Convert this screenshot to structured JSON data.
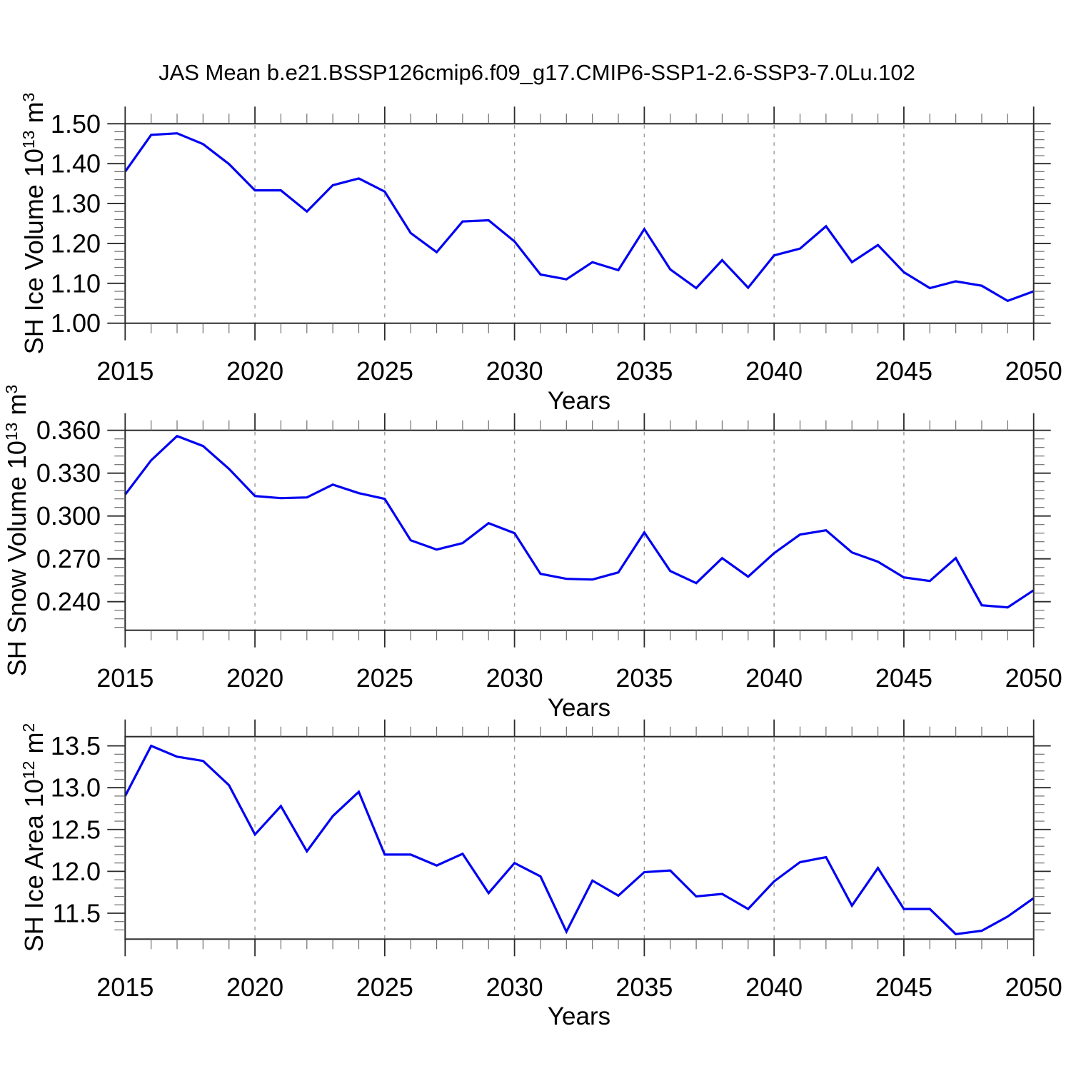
{
  "title": "JAS Mean b.e21.BSSP126cmip6.f09_g17.CMIP6-SSP1-2.6-SSP3-7.0Lu.102",
  "colors": {
    "line": "#0000f2",
    "grid": "#9a9a9a",
    "axis": "#2b2b2b",
    "minor_tick": "#6e6e6e"
  },
  "chart_data": {
    "type": "line",
    "x": [
      2015,
      2016,
      2017,
      2018,
      2019,
      2020,
      2021,
      2022,
      2023,
      2024,
      2025,
      2026,
      2027,
      2028,
      2029,
      2030,
      2031,
      2032,
      2033,
      2034,
      2035,
      2036,
      2037,
      2038,
      2039,
      2040,
      2041,
      2042,
      2043,
      2044,
      2045,
      2046,
      2047,
      2048,
      2049,
      2050
    ],
    "xticks": [
      2015,
      2020,
      2025,
      2030,
      2035,
      2040,
      2045,
      2050
    ],
    "xtick_labels": [
      "2015",
      "2020",
      "2025",
      "2030",
      "2035",
      "2040",
      "2045",
      "2050"
    ],
    "gridline_years": [
      2020,
      2025,
      2030,
      2035,
      2040,
      2045
    ],
    "grid": "vertical-dashed",
    "legend": "none",
    "panels": [
      {
        "name": "sh-ice-volume",
        "ylabel": "SH Ice Volume 10^13 m^3",
        "ylabel_parts": [
          {
            "t": "SH Ice Volume 10"
          },
          {
            "t": "13",
            "sup": true
          },
          {
            "t": " m"
          },
          {
            "t": "3",
            "sup": true
          }
        ],
        "xlabel": "Years",
        "ylim": [
          1.0,
          1.5
        ],
        "yticks": [
          1.0,
          1.1,
          1.2,
          1.3,
          1.4,
          1.5
        ],
        "ytick_labels": [
          "1.00",
          "1.10",
          "1.20",
          "1.30",
          "1.40",
          "1.50"
        ],
        "yminor_step": 0.02,
        "values": [
          1.38,
          1.472,
          1.476,
          1.449,
          1.399,
          1.333,
          1.333,
          1.28,
          1.346,
          1.363,
          1.33,
          1.226,
          1.178,
          1.255,
          1.258,
          1.205,
          1.122,
          1.11,
          1.153,
          1.133,
          1.236,
          1.135,
          1.088,
          1.158,
          1.089,
          1.17,
          1.187,
          1.243,
          1.153,
          1.196,
          1.128,
          1.088,
          1.105,
          1.094,
          1.056,
          1.08
        ]
      },
      {
        "name": "sh-snow-volume",
        "ylabel": "SH Snow Volume 10^13 m^3",
        "ylabel_parts": [
          {
            "t": "SH Snow Volume 10"
          },
          {
            "t": "13",
            "sup": true
          },
          {
            "t": " m"
          },
          {
            "t": "3",
            "sup": true
          }
        ],
        "xlabel": "Years",
        "ylim": [
          0.22,
          0.36
        ],
        "yticks": [
          0.24,
          0.27,
          0.3,
          0.33,
          0.36
        ],
        "ytick_labels": [
          "0.240",
          "0.270",
          "0.300",
          "0.330",
          "0.360"
        ],
        "yminor_step": 0.006,
        "values": [
          0.315,
          0.339,
          0.356,
          0.349,
          0.333,
          0.314,
          0.3125,
          0.313,
          0.322,
          0.316,
          0.312,
          0.283,
          0.2765,
          0.281,
          0.295,
          0.288,
          0.2595,
          0.256,
          0.2555,
          0.2605,
          0.2885,
          0.2615,
          0.253,
          0.2705,
          0.2575,
          0.274,
          0.287,
          0.29,
          0.2745,
          0.268,
          0.257,
          0.2545,
          0.2705,
          0.2375,
          0.236,
          0.248
        ]
      },
      {
        "name": "sh-ice-area",
        "ylabel": "SH Ice Area 10^12 m^2",
        "ylabel_parts": [
          {
            "t": "SH Ice Area 10"
          },
          {
            "t": "12",
            "sup": true
          },
          {
            "t": " m"
          },
          {
            "t": "2",
            "sup": true
          }
        ],
        "xlabel": "Years",
        "ylim": [
          11.19,
          13.61
        ],
        "yticks": [
          11.5,
          12.0,
          12.5,
          13.0,
          13.5
        ],
        "ytick_labels": [
          "11.5",
          "12.0",
          "12.5",
          "13.0",
          "13.5"
        ],
        "yminor_step": 0.1,
        "values": [
          12.9,
          13.5,
          13.37,
          13.32,
          13.03,
          12.44,
          12.78,
          12.24,
          12.66,
          12.95,
          12.2,
          12.2,
          12.07,
          12.21,
          11.74,
          12.1,
          11.94,
          11.28,
          11.89,
          11.71,
          11.99,
          12.01,
          11.7,
          11.73,
          11.55,
          11.88,
          12.11,
          12.17,
          11.59,
          12.04,
          11.55,
          11.55,
          11.25,
          11.29,
          11.46,
          11.68
        ]
      }
    ]
  }
}
